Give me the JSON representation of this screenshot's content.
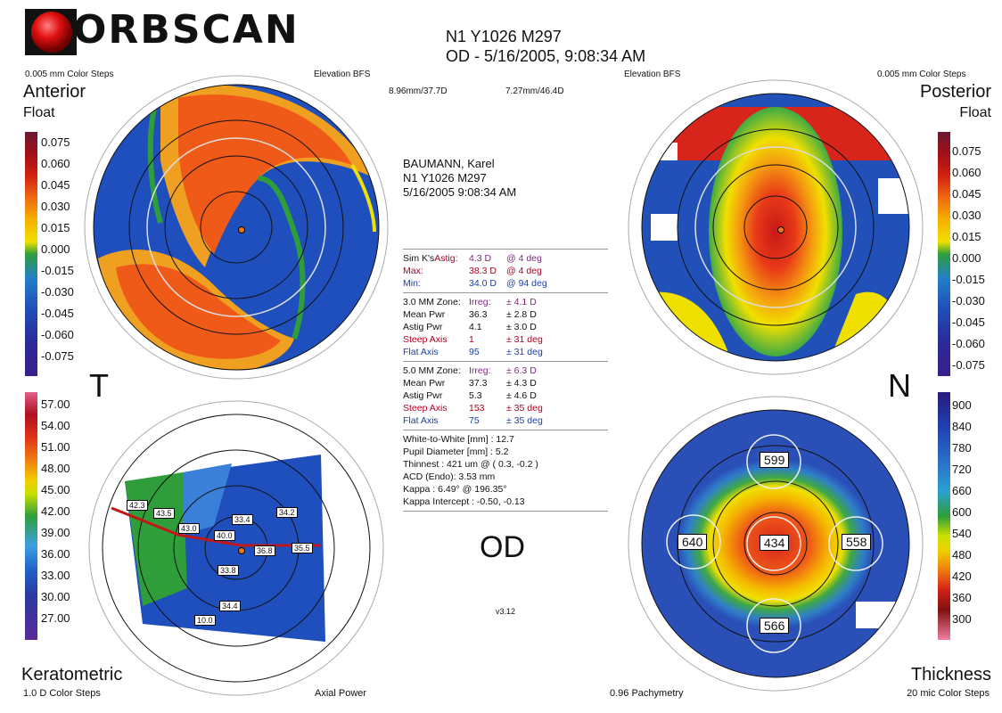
{
  "brand": {
    "logo_text": "ORBSCAN"
  },
  "header": {
    "line1": "N1 Y1026 M297",
    "line2": "OD - 5/16/2005, 9:08:34 AM"
  },
  "top_labels": {
    "left_steps": "0.005 mm Color Steps",
    "left_mode": "Elevation BFS",
    "bfs_left": "8.96mm/37.7D",
    "bfs_right": "7.27mm/46.4D",
    "right_mode": "Elevation BFS",
    "right_steps": "0.005 mm Color Steps"
  },
  "maps": {
    "anterior": {
      "title": "Anterior",
      "sub": "Float"
    },
    "posterior": {
      "title": "Posterior",
      "sub": "Float"
    },
    "keratometric": {
      "title": "Keratometric",
      "steps": "1.0 D Color Steps",
      "mode": "Axial Power"
    },
    "thickness": {
      "title": "Thickness",
      "pachy": "0.96 Pachymetry",
      "steps": "20 mic Color Steps"
    }
  },
  "side_letters": {
    "temporal": "T",
    "nasal": "N"
  },
  "scales": {
    "elevation": [
      "0.075",
      "0.060",
      "0.045",
      "0.030",
      "0.015",
      "0.000",
      "-0.015",
      "-0.030",
      "-0.045",
      "-0.060",
      "-0.075"
    ],
    "elevation_right": [
      "0.075",
      "0.060",
      "0.045",
      "0.030",
      "0.015",
      "0.000",
      "-0.015",
      "-0.030",
      "-0.045",
      "-0.060",
      "-0.075"
    ],
    "power": [
      "57.00",
      "54.00",
      "51.00",
      "48.00",
      "45.00",
      "42.00",
      "39.00",
      "36.00",
      "33.00",
      "30.00",
      "27.00"
    ],
    "thickness": [
      "900",
      "840",
      "780",
      "720",
      "660",
      "600",
      "540",
      "480",
      "420",
      "360",
      "300"
    ]
  },
  "patient": {
    "name": "BAUMANN, Karel",
    "id": "N1 Y1026 M297",
    "datetime": "5/16/2005 9:08:34 AM"
  },
  "simk": {
    "label": "Sim K's",
    "astig": {
      "name": "Astig:",
      "value": "4.3 D",
      "deg": "@ 4 deg"
    },
    "max": {
      "name": "Max:",
      "value": "38.3 D",
      "deg": "@ 4 deg"
    },
    "min": {
      "name": "Min:",
      "value": "34.0 D",
      "deg": "@ 94 deg"
    }
  },
  "zone3": {
    "title": "3.0 MM Zone:",
    "irreg_label": "Irreg:",
    "irreg": "± 4.1 D",
    "mean_label": "Mean Pwr",
    "mean": "36.3",
    "mean_pm": "± 2.8 D",
    "astig_label": "Astig Pwr",
    "astig": "4.1",
    "astig_pm": "± 3.0 D",
    "steep_label": "Steep Axis",
    "steep": "1",
    "steep_pm": "± 31 deg",
    "flat_label": "Flat Axis",
    "flat": "95",
    "flat_pm": "± 31 deg"
  },
  "zone5": {
    "title": "5.0 MM Zone:",
    "irreg_label": "Irreg:",
    "irreg": "± 6.3 D",
    "mean_label": "Mean Pwr",
    "mean": "37.3",
    "mean_pm": "± 4.3 D",
    "astig_label": "Astig Pwr",
    "astig": "5.3",
    "astig_pm": "± 4.6 D",
    "steep_label": "Steep Axis",
    "steep": "153",
    "steep_pm": "± 35 deg",
    "flat_label": "Flat Axis",
    "flat": "75",
    "flat_pm": "± 35 deg"
  },
  "misc": {
    "wtw": "White-to-White [mm] : 12.7",
    "pupil": "Pupil Diameter [mm] :  5.2",
    "thinnest": "Thinnest : 421 um @ ( 0.3, -0.2 )",
    "acd": "ACD (Endo): 3.53 mm",
    "kappa": "Kappa : 6.49° @ 196.35°",
    "kappa_intercept": "Kappa Intercept : -0.50, -0.13"
  },
  "eye": "OD",
  "version": "v3.12",
  "ker_values": [
    "42.3",
    "43.5",
    "43.0",
    "33.4",
    "34.2",
    "40.0",
    "36.8",
    "35.5",
    "33.8",
    "34.4",
    "10.0"
  ],
  "pachy_values": {
    "top": "599",
    "left": "640",
    "center": "434",
    "right": "558",
    "bottom": "566"
  },
  "colors": {
    "map_blue": "#1f3fb0",
    "map_red": "#d8251b",
    "map_yellow": "#f0e000",
    "map_green": "#2f9e3a",
    "map_orange": "#f07a10"
  }
}
